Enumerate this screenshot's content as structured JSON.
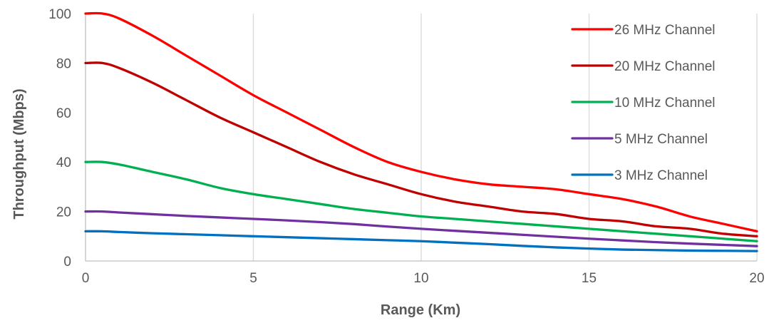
{
  "chart_data": {
    "type": "line",
    "title": "",
    "xlabel": "Range (Km)",
    "ylabel": "Throughput (Mbps)",
    "xlim": [
      0,
      20
    ],
    "ylim": [
      0,
      100
    ],
    "x_ticks": [
      0,
      5,
      10,
      15,
      20
    ],
    "y_ticks": [
      0,
      20,
      40,
      60,
      80,
      100
    ],
    "grid": "vertical",
    "legend_position": "top-right",
    "series": [
      {
        "name": "26 MHz Channel",
        "color": "#ff0000",
        "x": [
          0,
          0.5,
          1,
          2,
          3,
          4,
          5,
          6,
          7,
          8,
          9,
          10,
          11,
          12,
          13,
          14,
          15,
          16,
          17,
          18,
          19,
          20
        ],
        "values": [
          100,
          100,
          98,
          91,
          83,
          75,
          67,
          60,
          53,
          46,
          40,
          36,
          33,
          31,
          30,
          29,
          27,
          25,
          22,
          18,
          15,
          12
        ]
      },
      {
        "name": "20 MHz Channel",
        "color": "#c00000",
        "x": [
          0,
          0.5,
          1,
          2,
          3,
          4,
          5,
          6,
          7,
          8,
          9,
          10,
          11,
          12,
          13,
          14,
          15,
          16,
          17,
          18,
          19,
          20
        ],
        "values": [
          80,
          80,
          78,
          72,
          65,
          58,
          52,
          46,
          40,
          35,
          31,
          27,
          24,
          22,
          20,
          19,
          17,
          16,
          14,
          13,
          11,
          10
        ]
      },
      {
        "name": "10 MHz Channel",
        "color": "#00b050",
        "x": [
          0,
          0.5,
          1,
          2,
          3,
          4,
          5,
          6,
          7,
          8,
          9,
          10,
          11,
          12,
          13,
          14,
          15,
          16,
          17,
          18,
          19,
          20
        ],
        "values": [
          40,
          40,
          39,
          36,
          33,
          29.5,
          27,
          25,
          23,
          21,
          19.5,
          18,
          17,
          16,
          15,
          14,
          13,
          12,
          11,
          10,
          9,
          8
        ]
      },
      {
        "name": "5 MHz Channel",
        "color": "#7030a0",
        "x": [
          0,
          0.5,
          1,
          2,
          3,
          4,
          5,
          6,
          7,
          8,
          9,
          10,
          11,
          12,
          13,
          14,
          15,
          16,
          17,
          18,
          19,
          20
        ],
        "values": [
          20,
          20,
          19.6,
          18.9,
          18.2,
          17.6,
          17,
          16.4,
          15.7,
          14.9,
          13.9,
          13,
          12.2,
          11.4,
          10.6,
          9.8,
          9,
          8.3,
          7.6,
          7,
          6.5,
          6
        ]
      },
      {
        "name": "3 MHz Channel",
        "color": "#0070c0",
        "x": [
          0,
          0.5,
          1,
          2,
          3,
          4,
          5,
          6,
          7,
          8,
          9,
          10,
          11,
          12,
          13,
          14,
          15,
          16,
          17,
          18,
          19,
          20
        ],
        "values": [
          12,
          12,
          11.7,
          11.2,
          10.8,
          10.4,
          10,
          9.6,
          9.2,
          8.8,
          8.4,
          8,
          7.4,
          6.8,
          6.1,
          5.5,
          5,
          4.6,
          4.4,
          4.2,
          4.1,
          4
        ]
      }
    ]
  }
}
